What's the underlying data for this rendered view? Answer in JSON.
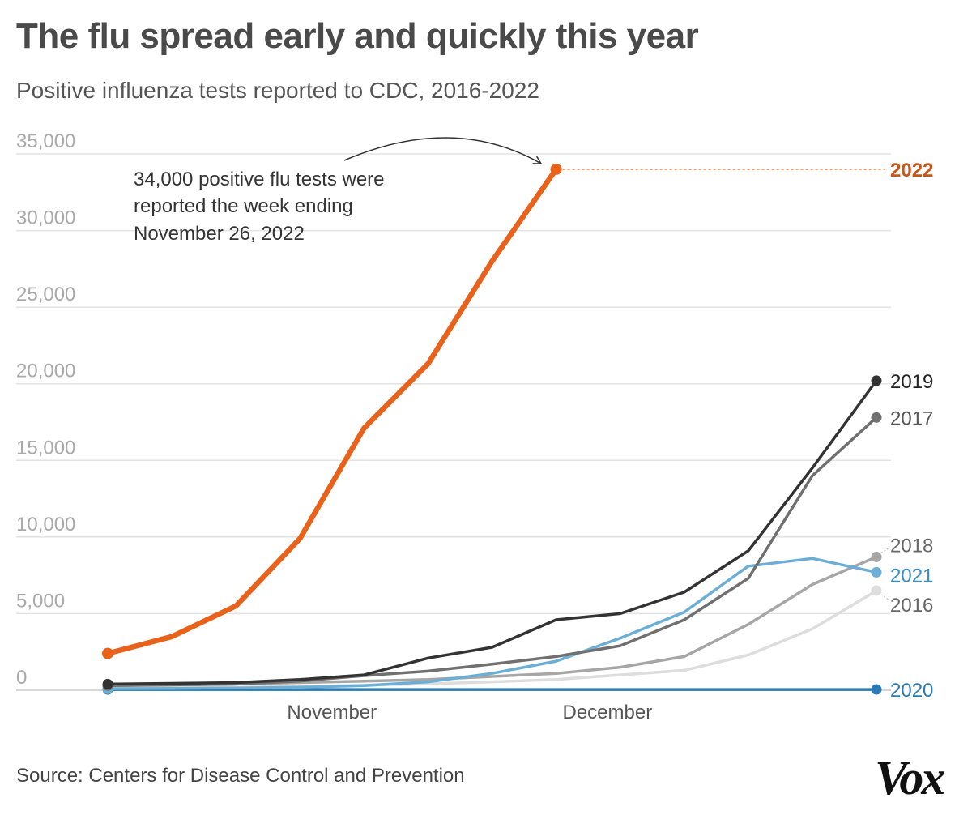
{
  "title": "The flu spread early and quickly this year",
  "subtitle": "Positive influenza tests reported to CDC, 2016-2022",
  "source": "Source: Centers for Disease Control and Prevention",
  "logo_text": "Vox",
  "annotation": {
    "lines": [
      "34,000 positive flu tests were",
      "reported the week ending",
      "November 26, 2022"
    ]
  },
  "chart_data": {
    "type": "line",
    "title": "The flu spread early and quickly this year",
    "subtitle": "Positive influenza tests reported to CDC, 2016-2022",
    "xlabel": "",
    "ylabel": "",
    "ylim": [
      0,
      35000
    ],
    "yticks": [
      0,
      5000,
      10000,
      15000,
      20000,
      25000,
      30000,
      35000
    ],
    "ytick_labels": [
      "0",
      "5,000",
      "10,000",
      "15,000",
      "20,000",
      "25,000",
      "30,000",
      "35,000"
    ],
    "x": [
      1,
      2,
      3,
      4,
      5,
      6,
      7,
      8,
      9,
      10,
      11,
      12,
      13
    ],
    "x_tick_labels": [
      {
        "x": 4.5,
        "label": "November"
      },
      {
        "x": 8.8,
        "label": "December"
      }
    ],
    "grid": true,
    "legend": "direct labels at right",
    "series": [
      {
        "name": "2016",
        "color": "#dddddd",
        "values": [
          150,
          170,
          200,
          250,
          320,
          420,
          550,
          700,
          1000,
          1300,
          2300,
          4000,
          6500
        ]
      },
      {
        "name": "2020",
        "color": "#2a7ab5",
        "values": [
          50,
          50,
          50,
          50,
          50,
          50,
          50,
          50,
          50,
          50,
          50,
          50,
          50
        ]
      },
      {
        "name": "2018",
        "color": "#a6a6a6",
        "values": [
          300,
          350,
          400,
          500,
          600,
          700,
          900,
          1100,
          1500,
          2200,
          4300,
          6900,
          8700
        ]
      },
      {
        "name": "2021",
        "color": "#6baed6",
        "values": [
          100,
          120,
          150,
          200,
          300,
          550,
          1100,
          1900,
          3400,
          5100,
          8100,
          8600,
          7700
        ]
      },
      {
        "name": "2017",
        "color": "#707070",
        "values": [
          300,
          350,
          400,
          600,
          950,
          1250,
          1700,
          2200,
          2900,
          4600,
          7300,
          14000,
          17800
        ]
      },
      {
        "name": "2019",
        "color": "#333333",
        "values": [
          400,
          450,
          500,
          700,
          1000,
          2100,
          2800,
          4600,
          5000,
          6400,
          9100,
          14500,
          20200
        ]
      },
      {
        "name": "2022",
        "color": "#e8621c",
        "values": [
          2400,
          3500,
          5500,
          9900,
          17100,
          21300,
          28000,
          34000,
          null,
          null,
          null,
          null,
          null
        ]
      }
    ]
  }
}
